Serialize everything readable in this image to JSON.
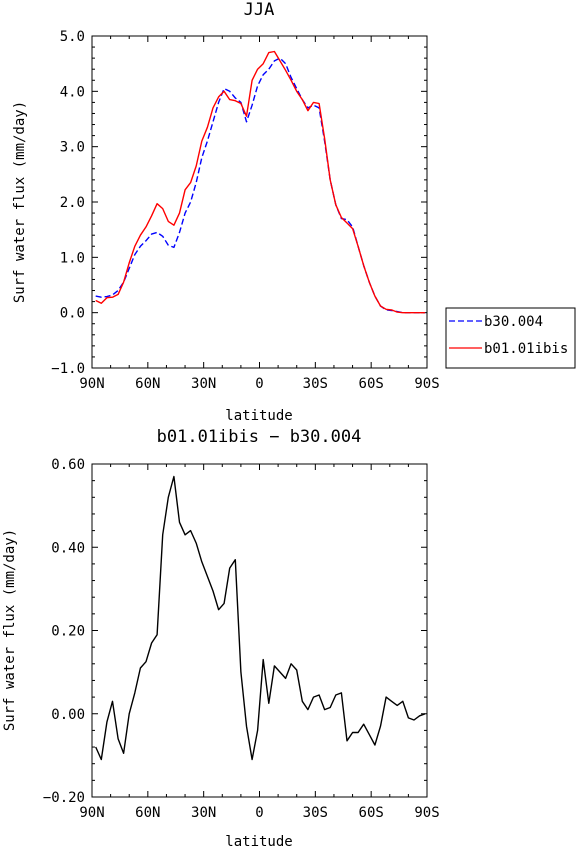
{
  "chart_data": [
    {
      "type": "line",
      "title": "JJA",
      "xlabel": "latitude",
      "ylabel": "Surf water flux (mm/day)",
      "xlim": [
        90,
        -90
      ],
      "ylim": [
        -1.0,
        5.0
      ],
      "xtick_values": [
        90,
        60,
        30,
        0,
        -30,
        -60,
        -90
      ],
      "xtick_labels": [
        "90N",
        "60N",
        "30N",
        "0",
        "30S",
        "60S",
        "90S"
      ],
      "ytick_values": [
        -1.0,
        0.0,
        1.0,
        2.0,
        3.0,
        4.0,
        5.0
      ],
      "ytick_labels": [
        "−1.0",
        "0.0",
        "1.0",
        "2.0",
        "3.0",
        "4.0",
        "5.0"
      ],
      "grid": false,
      "legend_position": "outside-right",
      "x": [
        88,
        85,
        82,
        79,
        76,
        73,
        70,
        67,
        64,
        61,
        58,
        55,
        52,
        49,
        46,
        43,
        40,
        37,
        34,
        31,
        28,
        25,
        22,
        19,
        16,
        13,
        10,
        7,
        4,
        1,
        -2,
        -5,
        -8,
        -11,
        -14,
        -17,
        -20,
        -23,
        -26,
        -29,
        -32,
        -35,
        -38,
        -41,
        -44,
        -47,
        -50,
        -53,
        -56,
        -59,
        -62,
        -65,
        -68,
        -71,
        -74,
        -77,
        -80,
        -83,
        -86,
        -89
      ],
      "series": [
        {
          "name": "b30.004",
          "color": "#0000ff",
          "dash": "dashed",
          "values": [
            0.3,
            0.28,
            0.29,
            0.32,
            0.4,
            0.55,
            0.8,
            1.05,
            1.2,
            1.3,
            1.42,
            1.45,
            1.38,
            1.22,
            1.18,
            1.45,
            1.8,
            2.0,
            2.35,
            2.8,
            3.1,
            3.45,
            3.8,
            4.05,
            4.0,
            3.88,
            3.8,
            3.45,
            3.75,
            4.1,
            4.3,
            4.4,
            4.55,
            4.6,
            4.5,
            4.25,
            4.05,
            3.85,
            3.7,
            3.75,
            3.7,
            3.1,
            2.4,
            1.95,
            1.7,
            1.68,
            1.55,
            1.2,
            0.85,
            0.55,
            0.3,
            0.12,
            0.05,
            0.04,
            0.02,
            0.0,
            0.0,
            0.0,
            0.0,
            0.0
          ]
        },
        {
          "name": "b01.01ibis",
          "color": "#ff0000",
          "dash": "solid",
          "values": [
            0.22,
            0.17,
            0.27,
            0.28,
            0.33,
            0.55,
            0.9,
            1.2,
            1.4,
            1.55,
            1.75,
            1.97,
            1.88,
            1.65,
            1.58,
            1.8,
            2.22,
            2.35,
            2.65,
            3.1,
            3.35,
            3.7,
            3.9,
            4.0,
            3.85,
            3.83,
            3.78,
            3.55,
            4.2,
            4.4,
            4.5,
            4.7,
            4.72,
            4.55,
            4.38,
            4.2,
            4.0,
            3.85,
            3.65,
            3.8,
            3.78,
            3.15,
            2.4,
            1.95,
            1.72,
            1.62,
            1.52,
            1.2,
            0.85,
            0.55,
            0.3,
            0.12,
            0.06,
            0.05,
            0.01,
            0.0,
            0.0,
            0.0,
            0.0,
            0.0
          ]
        }
      ]
    },
    {
      "type": "line",
      "title": "b01.01ibis − b30.004",
      "xlabel": "latitude",
      "ylabel": "Surf water flux (mm/day)",
      "xlim": [
        90,
        -90
      ],
      "ylim": [
        -0.2,
        0.6
      ],
      "xtick_values": [
        90,
        60,
        30,
        0,
        -30,
        -60,
        -90
      ],
      "xtick_labels": [
        "90N",
        "60N",
        "30N",
        "0",
        "30S",
        "60S",
        "90S"
      ],
      "ytick_values": [
        -0.2,
        0.0,
        0.2,
        0.4,
        0.6
      ],
      "ytick_labels": [
        "−0.20",
        "0.00",
        "0.20",
        "0.40",
        "0.60"
      ],
      "grid": false,
      "x": [
        88,
        85,
        82,
        79,
        76,
        73,
        70,
        67,
        64,
        61,
        58,
        55,
        52,
        49,
        46,
        43,
        40,
        37,
        34,
        31,
        28,
        25,
        22,
        19,
        16,
        13,
        10,
        7,
        4,
        1,
        -2,
        -5,
        -8,
        -11,
        -14,
        -17,
        -20,
        -23,
        -26,
        -29,
        -32,
        -35,
        -38,
        -41,
        -44,
        -47,
        -50,
        -53,
        -56,
        -59,
        -62,
        -65,
        -68,
        -71,
        -74,
        -77,
        -80,
        -83,
        -86,
        -89
      ],
      "series": [
        {
          "color": "#000000",
          "dash": "solid",
          "values": [
            -0.08,
            -0.11,
            -0.02,
            0.03,
            -0.06,
            -0.095,
            0.0,
            0.05,
            0.11,
            0.125,
            0.17,
            0.19,
            0.43,
            0.52,
            0.57,
            0.46,
            0.43,
            0.44,
            0.41,
            0.365,
            0.33,
            0.295,
            0.25,
            0.265,
            0.35,
            0.37,
            0.1,
            -0.03,
            -0.11,
            -0.04,
            0.13,
            0.025,
            0.115,
            0.1,
            0.085,
            0.12,
            0.105,
            0.03,
            0.01,
            0.04,
            0.045,
            0.01,
            0.015,
            0.045,
            0.05,
            -0.065,
            -0.045,
            -0.045,
            -0.025,
            -0.05,
            -0.075,
            -0.03,
            0.04,
            0.03,
            0.02,
            0.03,
            -0.01,
            -0.015,
            -0.005,
            0.0
          ]
        }
      ]
    }
  ]
}
